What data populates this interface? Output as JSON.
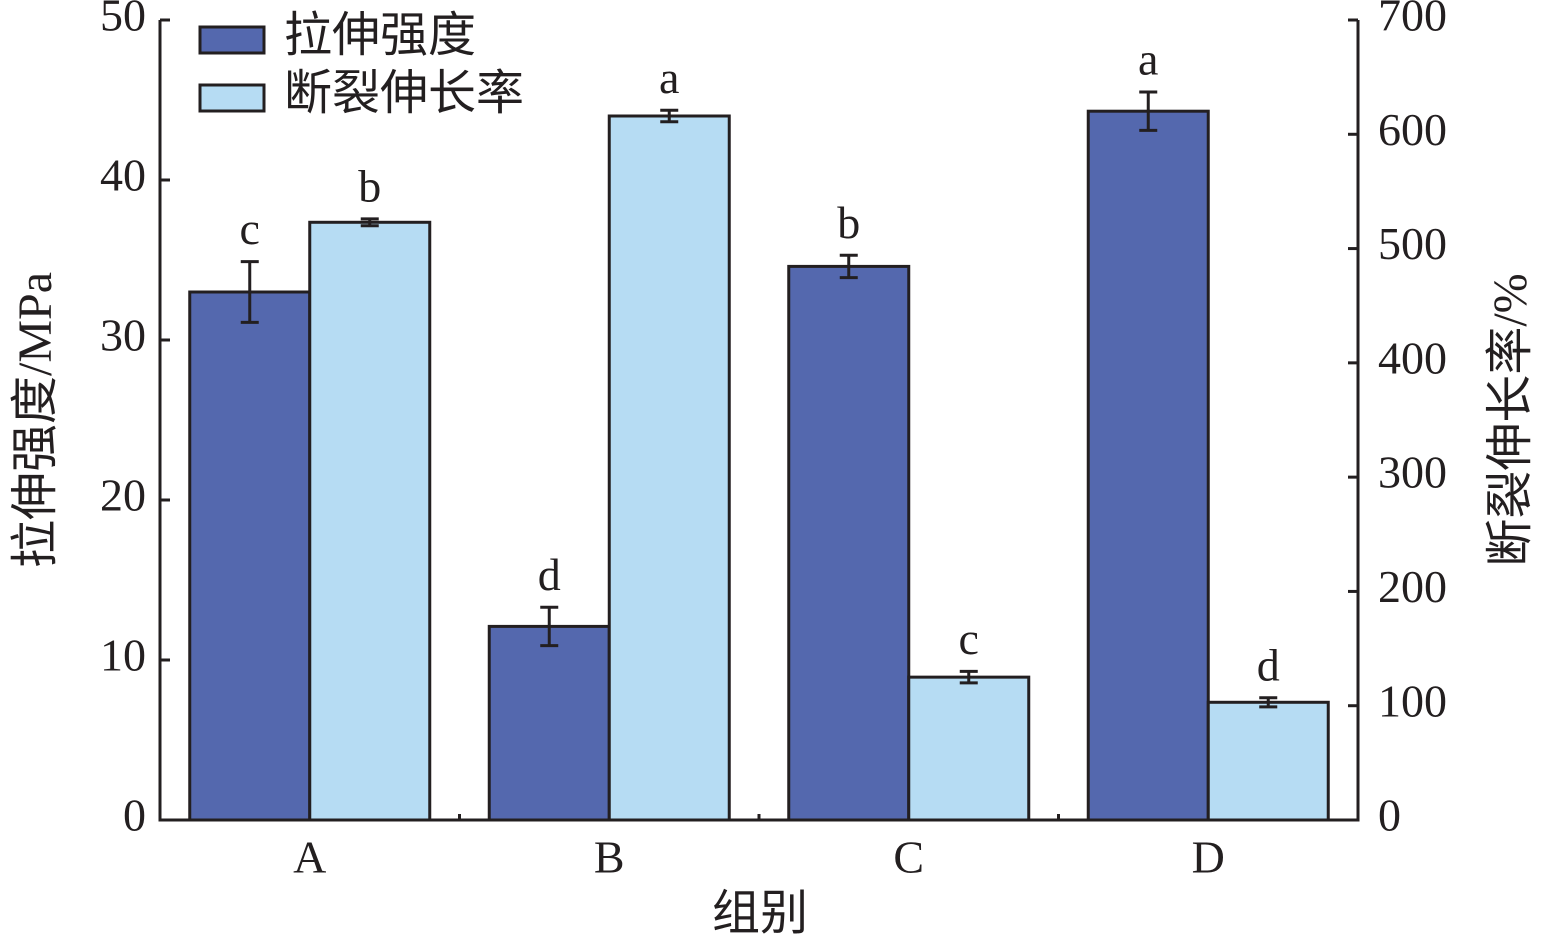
{
  "chart_data": {
    "type": "bar",
    "x_label": "组别",
    "y_label": "拉伸强度/MPa",
    "y2_label": "断裂伸长率/%",
    "categories": [
      "A",
      "B",
      "C",
      "D"
    ],
    "series": [
      {
        "name": "拉伸强度",
        "color": "#5468ae",
        "values": [
          33.0,
          12.1,
          34.6,
          44.3
        ],
        "errors": [
          1.9,
          1.2,
          0.7,
          1.2
        ],
        "significance": [
          "c",
          "d",
          "b",
          "a"
        ]
      },
      {
        "name": "断裂伸长率",
        "color": "#b6dcf3",
        "axis": "y2",
        "values": [
          523,
          616,
          125,
          103
        ],
        "errors": [
          3,
          5,
          5,
          4
        ],
        "significance": [
          "b",
          "a",
          "c",
          "d"
        ]
      }
    ],
    "ylim": [
      0,
      50
    ],
    "yticks": [
      0,
      10,
      20,
      30,
      40,
      50
    ],
    "y2lim": [
      0,
      700
    ],
    "y2ticks": [
      0,
      100,
      200,
      300,
      400,
      500,
      600,
      700
    ],
    "legend": "upper-left"
  }
}
